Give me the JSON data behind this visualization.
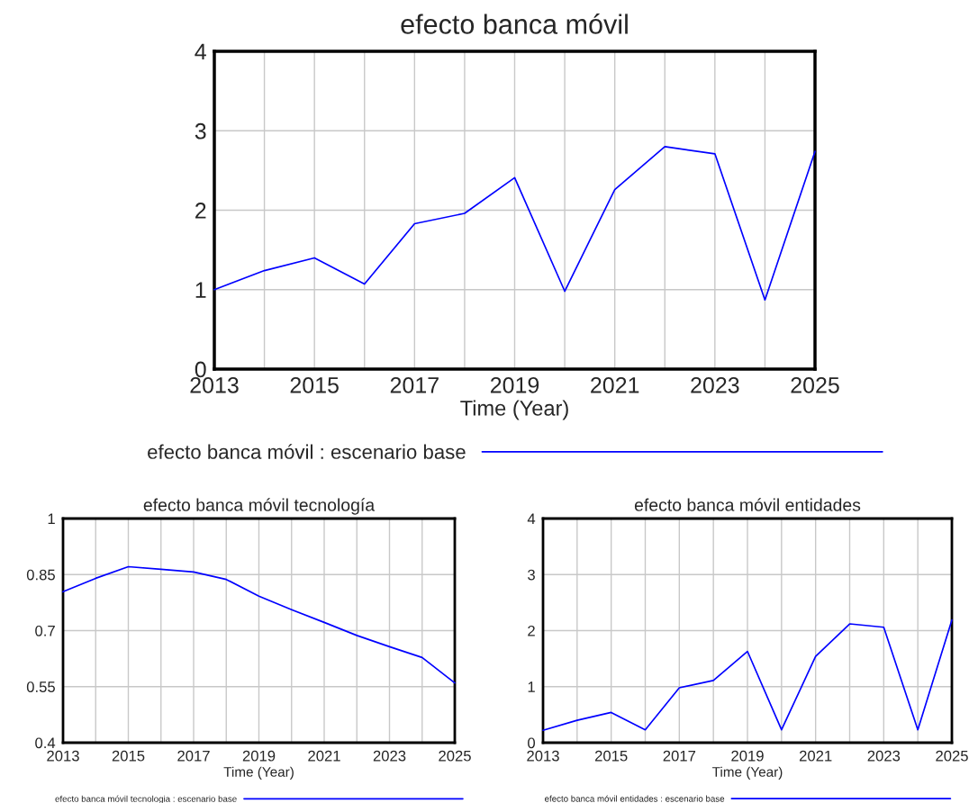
{
  "chart_data": [
    {
      "type": "line",
      "title": "efecto banca móvil",
      "xlabel": "Time (Year)",
      "x": [
        2013,
        2014,
        2015,
        2016,
        2017,
        2018,
        2019,
        2020,
        2021,
        2022,
        2023,
        2024,
        2025
      ],
      "series": [
        {
          "name": "efecto banca móvil : escenario base",
          "color": "#0000ff",
          "values": [
            1.0,
            1.24,
            1.4,
            1.07,
            1.83,
            1.96,
            2.41,
            0.98,
            2.26,
            2.8,
            2.71,
            0.87,
            2.74
          ]
        }
      ],
      "xlim": [
        2013,
        2025
      ],
      "xticks": [
        2013,
        {
          "value": 2014,
          "label": null
        },
        2015,
        {
          "value": 2016,
          "label": null
        },
        2017,
        {
          "value": 2018,
          "label": null
        },
        2019,
        {
          "value": 2020,
          "label": null
        },
        2021,
        {
          "value": 2022,
          "label": null
        },
        2023,
        {
          "value": 2024,
          "label": null
        },
        2025
      ],
      "ylim": [
        0,
        4
      ],
      "yticks": [
        0,
        1,
        2,
        3,
        4
      ],
      "grid": true,
      "legend": "bottom"
    },
    {
      "type": "line",
      "title": "efecto banca móvil tecnología",
      "xlabel": "Time (Year)",
      "x": [
        2013,
        2014,
        2015,
        2016,
        2017,
        2018,
        2019,
        2020,
        2021,
        2022,
        2023,
        2024,
        2025
      ],
      "series": [
        {
          "name": "efecto banca móvil tecnologia : escenario base",
          "color": "#0000ff",
          "values": [
            0.804,
            0.84,
            0.871,
            0.864,
            0.857,
            0.837,
            0.792,
            0.756,
            0.722,
            0.687,
            0.657,
            0.628,
            0.56
          ]
        }
      ],
      "xlim": [
        2013,
        2025
      ],
      "xticks": [
        2013,
        {
          "value": 2014,
          "label": null
        },
        2015,
        {
          "value": 2016,
          "label": null
        },
        2017,
        {
          "value": 2018,
          "label": null
        },
        2019,
        {
          "value": 2020,
          "label": null
        },
        2021,
        {
          "value": 2022,
          "label": null
        },
        2023,
        {
          "value": 2024,
          "label": null
        },
        2025
      ],
      "ylim": [
        0.4,
        1
      ],
      "yticks": [
        0.4,
        0.55,
        0.7,
        0.85,
        1
      ],
      "grid": true,
      "legend": "bottom"
    },
    {
      "type": "line",
      "title": "efecto banca móvil entidades",
      "xlabel": "Time (Year)",
      "x": [
        2013,
        2014,
        2015,
        2016,
        2017,
        2018,
        2019,
        2020,
        2021,
        2022,
        2023,
        2024,
        2025
      ],
      "series": [
        {
          "name": "efecto banca móvil entidades : escenario base",
          "color": "#0000ff",
          "values": [
            0.22,
            0.4,
            0.54,
            0.23,
            0.98,
            1.11,
            1.63,
            0.23,
            1.54,
            2.12,
            2.06,
            0.23,
            2.19
          ]
        }
      ],
      "xlim": [
        2013,
        2025
      ],
      "xticks": [
        2013,
        {
          "value": 2014,
          "label": null
        },
        2015,
        {
          "value": 2016,
          "label": null
        },
        2017,
        {
          "value": 2018,
          "label": null
        },
        2019,
        {
          "value": 2020,
          "label": null
        },
        2021,
        {
          "value": 2022,
          "label": null
        },
        2023,
        {
          "value": 2024,
          "label": null
        },
        2025
      ],
      "ylim": [
        0,
        4
      ],
      "yticks": [
        0,
        1,
        2,
        3,
        4
      ],
      "grid": true,
      "legend": "bottom"
    }
  ]
}
